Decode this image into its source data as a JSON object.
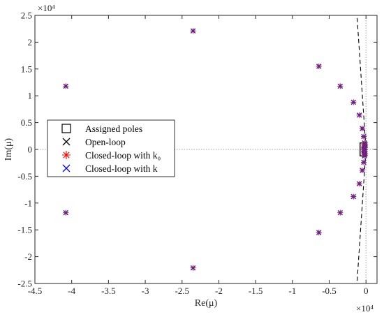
{
  "chart_data": {
    "type": "scatter",
    "xlabel": "Re(μ)",
    "ylabel": "Im(μ)",
    "x_exponent": "×10⁴",
    "y_exponent": "×10⁴",
    "xlim": [
      -4.5,
      0.15
    ],
    "ylim": [
      -2.5,
      2.5
    ],
    "x_ticks": [
      -4.5,
      -4,
      -3.5,
      -3,
      -2.5,
      -2,
      -1.5,
      -1,
      -0.5,
      0
    ],
    "x_tick_labels": [
      "-4.5",
      "-4",
      "-3.5",
      "-3",
      "-2.5",
      "-2",
      "-1.5",
      "-1",
      "-0.5",
      "0"
    ],
    "y_ticks": [
      -2.5,
      -2,
      -1.5,
      -1,
      -0.5,
      0,
      0.5,
      1,
      1.5,
      2,
      2.5
    ],
    "y_tick_labels": [
      "-2.5",
      "-2",
      "-1.5",
      "-1",
      "-0.5",
      "0",
      "0.5",
      "1",
      "1.5",
      "2",
      "2.5"
    ],
    "grid": false,
    "legend_position": "left",
    "legend": [
      {
        "label": "Assigned poles",
        "marker": "square",
        "color": "#000000"
      },
      {
        "label": "Open-loop",
        "marker": "x",
        "color": "#000000"
      },
      {
        "label": "Closed-loop with k₀",
        "marker": "asterisk",
        "color": "#ff0000"
      },
      {
        "label": "Closed-loop with k",
        "marker": "x",
        "color": "#0000ff"
      }
    ],
    "damping_lines": [
      {
        "x": [
          -0.12,
          0.0
        ],
        "y": [
          2.45,
          0.0
        ],
        "style": "dashed",
        "color": "#000000"
      },
      {
        "x": [
          -0.12,
          0.0
        ],
        "y": [
          -2.45,
          0.0
        ],
        "style": "dashed",
        "color": "#000000"
      }
    ],
    "zero_lines": {
      "x0": true,
      "y0": true,
      "style": "dotted",
      "color": "#a0a0a0"
    },
    "series": [
      {
        "x": [
          -2.35,
          -2.35,
          -4.08,
          -4.08,
          -0.64,
          -0.64,
          -0.35,
          -0.35,
          -0.17,
          -0.17,
          -0.09,
          -0.09,
          -0.05,
          -0.05,
          -0.03,
          -0.03,
          -0.02,
          -0.02
        ],
        "y": [
          2.21,
          -2.21,
          1.18,
          -1.18,
          1.55,
          -1.55,
          1.18,
          -1.18,
          0.88,
          -0.88,
          0.64,
          -0.64,
          0.39,
          -0.39,
          0.24,
          -0.24,
          0.12,
          -0.12
        ]
      },
      {
        "x": [
          -0.03,
          -0.03,
          -0.02,
          -0.02,
          -0.01,
          -0.01,
          -0.03,
          -0.01,
          -0.02,
          -0.02
        ],
        "y": [
          0.0,
          0.05,
          -0.05,
          0.08,
          -0.08,
          0.03,
          -0.03,
          0.1,
          -0.1,
          0.0
        ]
      }
    ],
    "assigned_box": {
      "x0": -0.08,
      "x1": 0.0,
      "y0": -0.12,
      "y1": 0.12
    }
  }
}
